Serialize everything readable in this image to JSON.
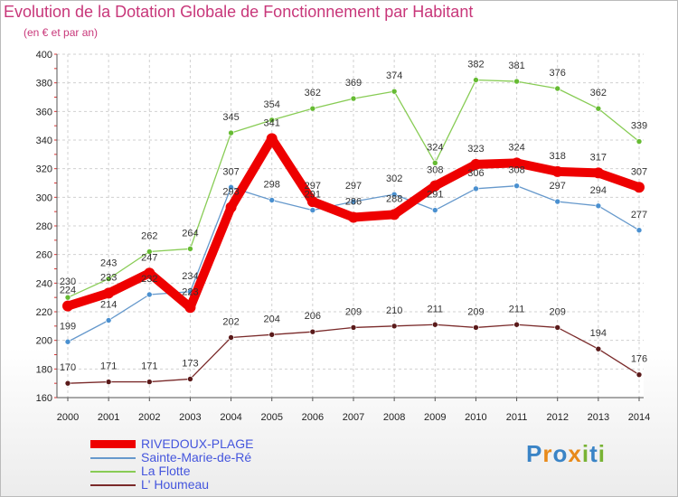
{
  "title": "Evolution de la Dotation Globale de Fonctionnement par Habitant",
  "subtitle": "(en € et par an)",
  "logo": {
    "text": "Proxiti",
    "colors": [
      "#3a84c6",
      "#e88a1a",
      "#3a84c6",
      "#e88a1a",
      "#78b334",
      "#3a84c6",
      "#78b334"
    ]
  },
  "chart_data": {
    "type": "line",
    "x": [
      2000,
      2001,
      2002,
      2003,
      2004,
      2005,
      2006,
      2007,
      2008,
      2009,
      2010,
      2011,
      2012,
      2013,
      2014
    ],
    "ylim": [
      160,
      400
    ],
    "yticks": [
      160,
      180,
      200,
      220,
      240,
      260,
      280,
      300,
      320,
      340,
      360,
      380,
      400
    ],
    "grid": true,
    "legend_position": "bottom-left",
    "series": [
      {
        "name": "RIVEDOUX-PLAGE",
        "color": "#ee0000",
        "values": [
          224,
          233,
          247,
          223,
          293,
          341,
          297,
          286,
          288,
          308,
          323,
          324,
          318,
          317,
          307
        ]
      },
      {
        "name": "Sainte-Marie-de-Ré",
        "color": "#6699cc",
        "values": [
          199,
          214,
          232,
          234,
          307,
          298,
          291,
          297,
          302,
          291,
          306,
          308,
          297,
          294,
          277
        ]
      },
      {
        "name": "La Flotte",
        "color": "#88cc55",
        "values": [
          230,
          243,
          262,
          264,
          345,
          354,
          362,
          369,
          374,
          324,
          382,
          381,
          376,
          362,
          339
        ]
      },
      {
        "name": "L' Houmeau",
        "color": "#7a2a2a",
        "values": [
          170,
          171,
          171,
          173,
          202,
          204,
          206,
          209,
          210,
          211,
          209,
          211,
          209,
          194,
          176
        ]
      }
    ]
  }
}
